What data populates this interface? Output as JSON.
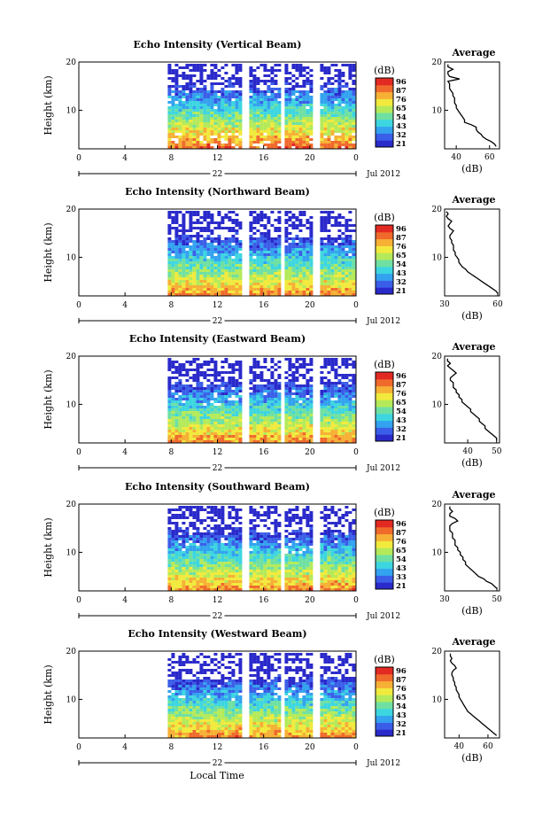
{
  "colors": {
    "scale": [
      "#2a2acb",
      "#3b5ee8",
      "#33a2ef",
      "#3dd6e0",
      "#6fe0a2",
      "#b4ea5a",
      "#f1ea3d",
      "#f6b035",
      "#f06a2c",
      "#e22a22"
    ],
    "gap": "#ffffff",
    "line": "#000000"
  },
  "figure": {
    "xaxis_title": "Local Time"
  },
  "chart_data": [
    {
      "type": "heatmap",
      "title": "Echo Intensity (Vertical Beam)",
      "ylabel": "Height (km)",
      "yticks": [
        "10",
        "20"
      ],
      "ylim": [
        2,
        20
      ],
      "xlim": [
        0,
        24
      ],
      "xticks": [
        "0",
        "4",
        "8",
        "12",
        "16",
        "20",
        "0"
      ],
      "date_day": "22",
      "date_month": "Jul 2012",
      "data_start_hour": 7.7,
      "colorbar": {
        "label": "(dB)",
        "ticks": [
          "96",
          "87",
          "76",
          "65",
          "54",
          "43",
          "32",
          "21"
        ]
      },
      "profile": {
        "title": "Average",
        "xlabel": "(dB)",
        "xticks": [
          "40",
          "60"
        ],
        "xlim": [
          33,
          66
        ],
        "ylim": [
          2,
          20
        ],
        "yticks": [
          "10",
          "20"
        ],
        "heights": [
          2.5,
          3,
          3.5,
          4,
          4.5,
          5,
          5.5,
          6,
          6.5,
          7,
          7.5,
          8,
          8.5,
          9,
          9.5,
          10,
          10.5,
          11,
          11.5,
          12,
          12.5,
          13,
          13.5,
          14,
          14.5,
          15,
          15.5,
          16,
          16.5,
          17,
          17.5,
          18,
          18.5,
          19,
          19.5
        ],
        "values": [
          64,
          63,
          61,
          58,
          56,
          55,
          53,
          52,
          52,
          49,
          45,
          45,
          44,
          43,
          42,
          41,
          40,
          40,
          39,
          39,
          39,
          38,
          38,
          37,
          36,
          36,
          36,
          35,
          42,
          36,
          35,
          35,
          38,
          35,
          35
        ]
      }
    },
    {
      "type": "heatmap",
      "title": "Echo Intensity (Northward Beam)",
      "ylabel": "Height (km)",
      "yticks": [
        "10",
        "20"
      ],
      "ylim": [
        2,
        20
      ],
      "xlim": [
        0,
        24
      ],
      "xticks": [
        "0",
        "4",
        "8",
        "12",
        "16",
        "20",
        "0"
      ],
      "date_day": "22",
      "date_month": "Jul 2012",
      "data_start_hour": 7.7,
      "colorbar": {
        "label": "(dB)",
        "ticks": [
          "96",
          "87",
          "76",
          "65",
          "54",
          "43",
          "32",
          "21"
        ]
      },
      "profile": {
        "title": "Average",
        "xlabel": "(dB)",
        "xticks": [
          "30",
          "60"
        ],
        "xlim": [
          30,
          61
        ],
        "ylim": [
          2,
          20
        ],
        "yticks": [
          "10",
          "20"
        ],
        "heights": [
          2.5,
          3,
          3.5,
          4,
          4.5,
          5,
          5.5,
          6,
          6.5,
          7,
          7.5,
          8,
          8.5,
          9,
          9.5,
          10,
          10.5,
          11,
          11.5,
          12,
          12.5,
          13,
          13.5,
          14,
          14.5,
          15,
          15.5,
          16,
          16.5,
          17,
          17.5,
          18,
          18.5,
          19,
          19.5
        ],
        "values": [
          60,
          59,
          57,
          55,
          53,
          51,
          49,
          47,
          45,
          43,
          42,
          40,
          39,
          38,
          38,
          37,
          36,
          36,
          35,
          35,
          35,
          34,
          34,
          33,
          33,
          34,
          35,
          33,
          32,
          33,
          34,
          32,
          31,
          32,
          31
        ]
      }
    },
    {
      "type": "heatmap",
      "title": "Echo Intensity (Eastward Beam)",
      "ylabel": "Height (km)",
      "yticks": [
        "10",
        "20"
      ],
      "ylim": [
        2,
        20
      ],
      "xlim": [
        0,
        24
      ],
      "xticks": [
        "0",
        "4",
        "8",
        "12",
        "16",
        "20",
        "0"
      ],
      "date_day": "22",
      "date_month": "Jul 2012",
      "data_start_hour": 7.7,
      "colorbar": {
        "label": "(dB)",
        "ticks": [
          "96",
          "87",
          "76",
          "65",
          "54",
          "43",
          "32",
          "21"
        ]
      },
      "profile": {
        "title": "Average",
        "xlabel": "(dB)",
        "xticks": [
          "40",
          "50"
        ],
        "xlim": [
          32,
          51
        ],
        "ylim": [
          2,
          20
        ],
        "yticks": [
          "10",
          "20"
        ],
        "heights": [
          2.5,
          3,
          3.5,
          4,
          4.5,
          5,
          5.5,
          6,
          6.5,
          7,
          7.5,
          8,
          8.5,
          9,
          9.5,
          10,
          10.5,
          11,
          11.5,
          12,
          12.5,
          13,
          13.5,
          14,
          14.5,
          15,
          15.5,
          16,
          16.5,
          17,
          17.5,
          18,
          18.5,
          19,
          19.5
        ],
        "values": [
          50,
          50,
          49,
          48,
          47,
          46,
          46,
          45,
          44,
          44,
          43,
          42,
          41,
          41,
          40,
          39,
          38,
          38,
          37,
          37,
          36,
          36,
          35,
          35,
          35,
          34,
          34,
          35,
          36,
          35,
          34,
          33,
          34,
          33,
          33
        ]
      }
    },
    {
      "type": "heatmap",
      "title": "Echo Intensity (Southward Beam)",
      "ylabel": "Height (km)",
      "yticks": [
        "10",
        "20"
      ],
      "ylim": [
        2,
        20
      ],
      "xlim": [
        0,
        24
      ],
      "xticks": [
        "0",
        "4",
        "8",
        "12",
        "16",
        "20",
        "0"
      ],
      "date_day": "22",
      "date_month": "Jul 2012",
      "data_start_hour": 7.7,
      "colorbar": {
        "label": "(dB)",
        "ticks": [
          "96",
          "87",
          "76",
          "65",
          "54",
          "43",
          "33",
          "21"
        ]
      },
      "profile": {
        "title": "Average",
        "xlabel": "(dB)",
        "xticks": [
          "30",
          "50"
        ],
        "xlim": [
          30,
          51
        ],
        "ylim": [
          2,
          20
        ],
        "yticks": [
          "10",
          "20"
        ],
        "heights": [
          2.5,
          3,
          3.5,
          4,
          4.5,
          5,
          5.5,
          6,
          6.5,
          7,
          7.5,
          8,
          8.5,
          9,
          9.5,
          10,
          10.5,
          11,
          11.5,
          12,
          12.5,
          13,
          13.5,
          14,
          14.5,
          15,
          15.5,
          16,
          16.5,
          17,
          17.5,
          18,
          18.5,
          19,
          19.5
        ],
        "values": [
          50,
          49,
          48,
          46,
          45,
          43,
          42,
          41,
          40,
          39,
          38,
          38,
          37,
          37,
          36,
          36,
          35,
          35,
          34,
          34,
          34,
          33,
          33,
          33,
          32,
          32,
          32,
          33,
          35,
          34,
          32,
          32,
          33,
          32,
          32
        ]
      }
    },
    {
      "type": "heatmap",
      "title": "Echo Intensity (Westward Beam)",
      "ylabel": "Height (km)",
      "yticks": [
        "10",
        "20"
      ],
      "ylim": [
        2,
        20
      ],
      "xlim": [
        0,
        24
      ],
      "xticks": [
        "0",
        "4",
        "8",
        "12",
        "16",
        "20",
        "0"
      ],
      "date_day": "22",
      "date_month": "Jul 2012",
      "data_start_hour": 7.7,
      "colorbar": {
        "label": "(dB)",
        "ticks": [
          "96",
          "87",
          "76",
          "65",
          "54",
          "43",
          "32",
          "21"
        ]
      },
      "profile": {
        "title": "Average",
        "xlabel": "(dB)",
        "xticks": [
          "40",
          "60"
        ],
        "xlim": [
          30,
          68
        ],
        "ylim": [
          2,
          20
        ],
        "yticks": [
          "10",
          "20"
        ],
        "heights": [
          2.5,
          3,
          3.5,
          4,
          4.5,
          5,
          5.5,
          6,
          6.5,
          7,
          7.5,
          8,
          8.5,
          9,
          9.5,
          10,
          10.5,
          11,
          11.5,
          12,
          12.5,
          13,
          13.5,
          14,
          14.5,
          15,
          15.5,
          16,
          16.5,
          17,
          17.5,
          18,
          18.5,
          19,
          19.5
        ],
        "values": [
          66,
          64,
          62,
          60,
          58,
          56,
          54,
          52,
          50,
          48,
          46,
          45,
          44,
          43,
          42,
          41,
          40,
          40,
          39,
          38,
          38,
          37,
          37,
          36,
          36,
          35,
          35,
          36,
          38,
          37,
          35,
          34,
          35,
          34,
          34
        ]
      }
    }
  ]
}
